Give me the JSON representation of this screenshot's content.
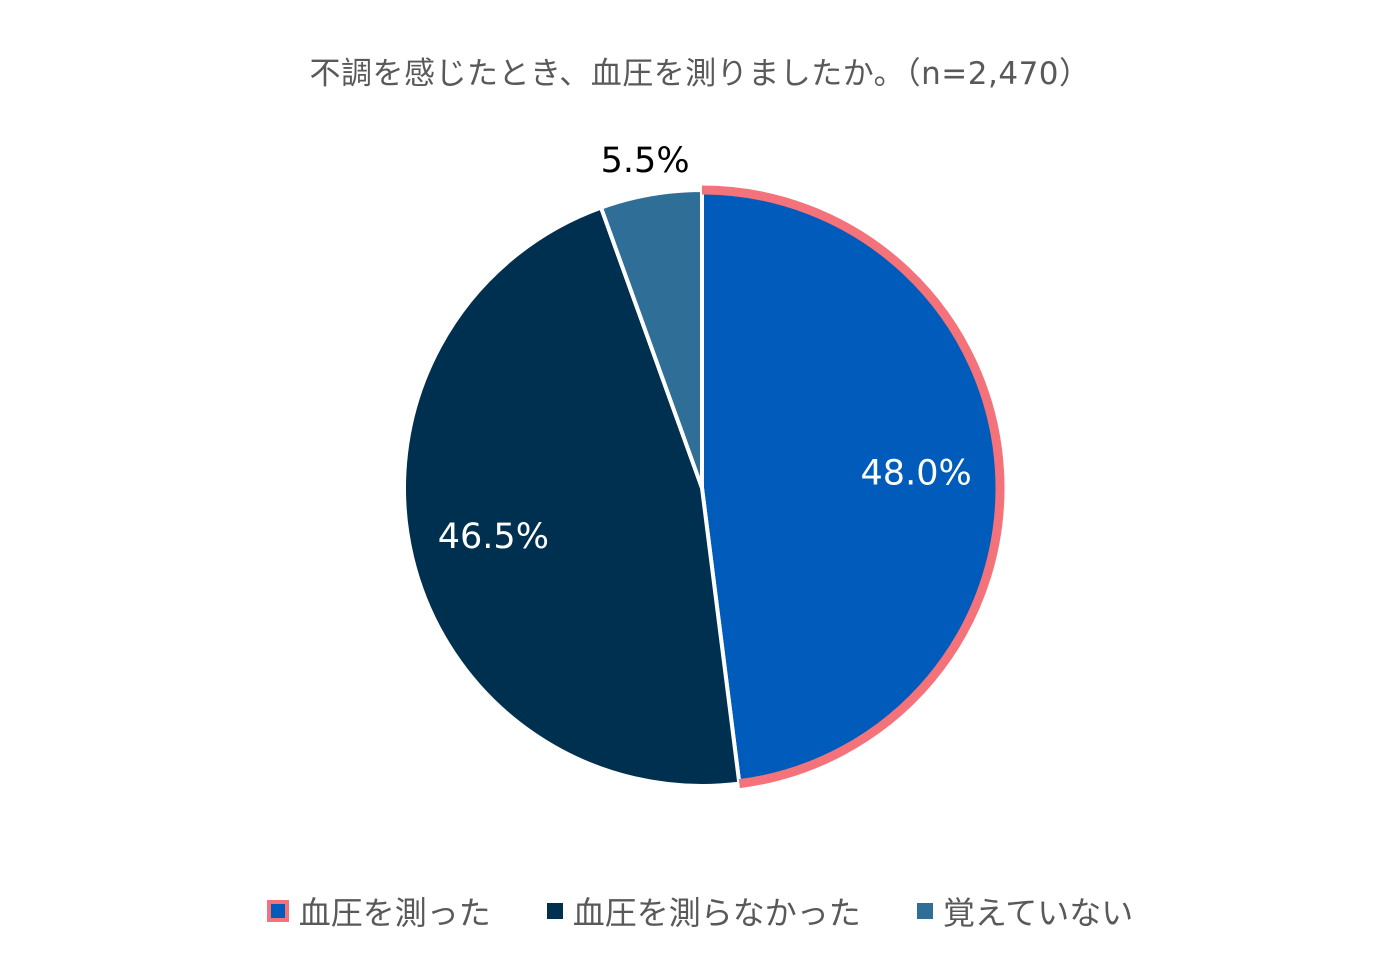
{
  "chart_data": {
    "type": "pie",
    "title": "不調を感じたとき、血圧を測りましたか。（n=2,470）",
    "categories": [
      "血圧を測った",
      "血圧を測らなかった",
      "覚えていない"
    ],
    "values": [
      48.0,
      46.5,
      5.5
    ],
    "value_labels": [
      "48.0%",
      "46.5%",
      "5.5%"
    ],
    "colors": [
      "#005BBB",
      "#003050",
      "#2E6E97"
    ],
    "highlight": {
      "index": 0,
      "outline_color": "#F4727A"
    },
    "label_colors": [
      "#ffffff",
      "#ffffff",
      "#000000"
    ],
    "legend_position": "bottom"
  }
}
